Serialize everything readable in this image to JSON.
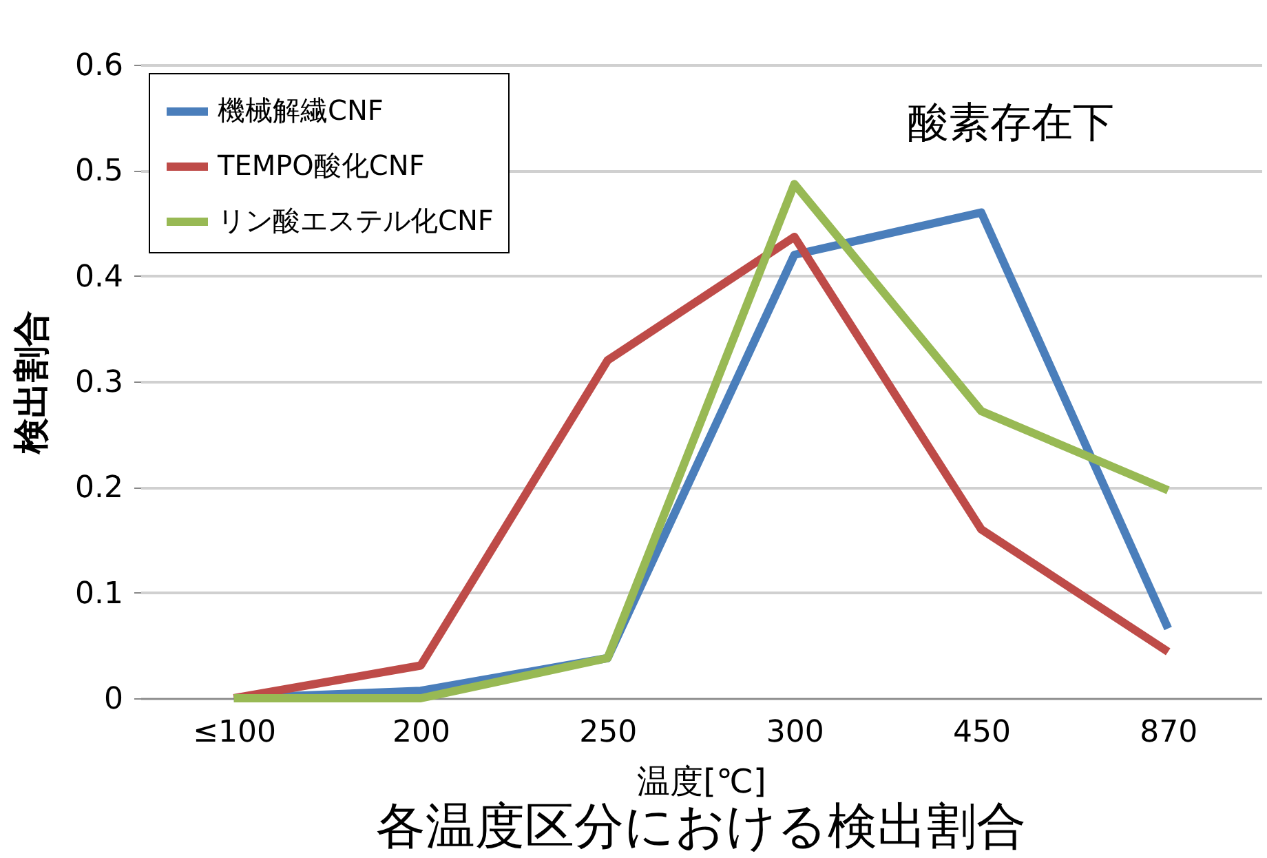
{
  "chart_data": {
    "type": "line",
    "title": "各温度区分における検出割合",
    "xlabel": "温度[℃]",
    "ylabel": "検出割合",
    "categories": [
      "≤100",
      "200",
      "250",
      "300",
      "450",
      "870"
    ],
    "series": [
      {
        "name": "機械解繊CNF",
        "color": "#4a7ebb",
        "values": [
          0,
          0.007,
          0.038,
          0.42,
          0.46,
          0.066
        ]
      },
      {
        "name": "TEMPO酸化CNF",
        "color": "#be4b48",
        "values": [
          0,
          0.031,
          0.32,
          0.437,
          0.16,
          0.044
        ]
      },
      {
        "name": "リン酸エステル化CNF",
        "color": "#98b954",
        "values": [
          0,
          0,
          0.038,
          0.487,
          0.272,
          0.197
        ]
      }
    ],
    "ylim": [
      0,
      0.6
    ],
    "yticks": [
      0,
      0.1,
      0.2,
      0.3,
      0.4,
      0.5,
      0.6
    ],
    "grid": "y",
    "legend": "top left",
    "marker": "none",
    "line_style": "solid",
    "annotations": [
      "酸素存在下"
    ]
  }
}
